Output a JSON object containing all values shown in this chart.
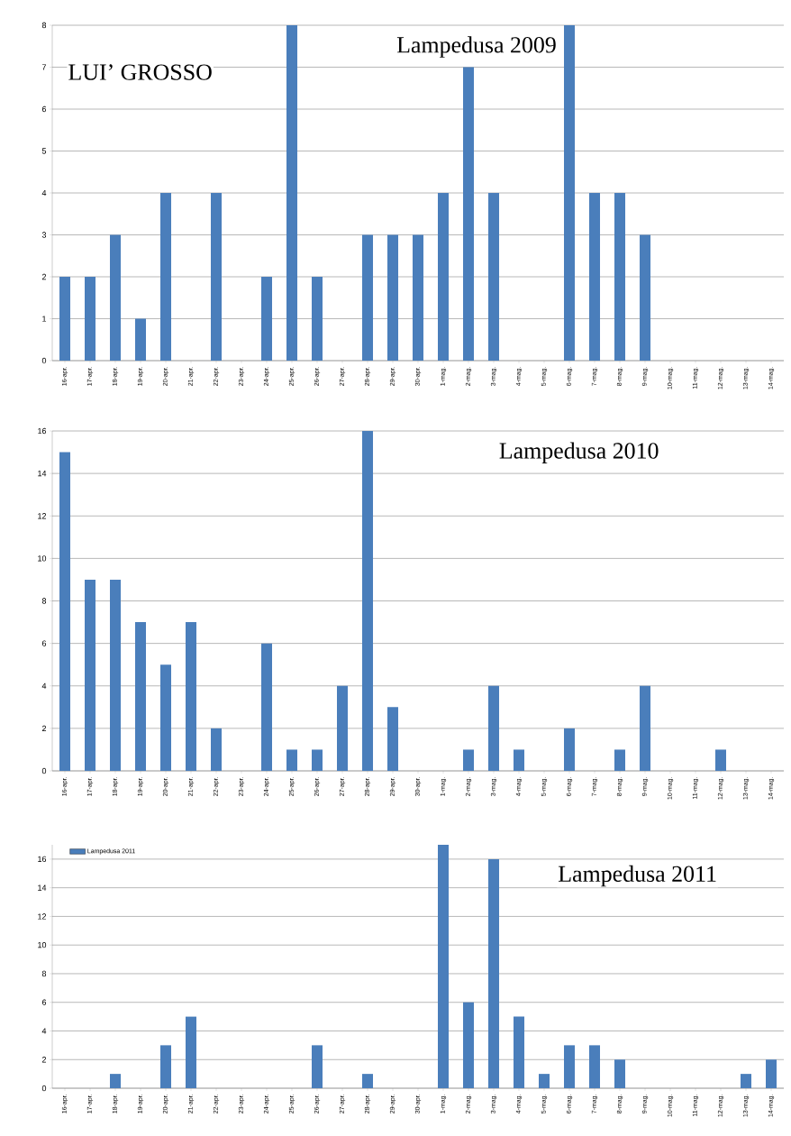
{
  "chart_data": [
    {
      "type": "bar",
      "title": "Lampedusa 2009",
      "annotations": [
        "LUI’ GROSSO"
      ],
      "categories": [
        "16-apr.",
        "17-apr.",
        "18-apr.",
        "19-apr.",
        "20-apr.",
        "21-apr.",
        "22-apr.",
        "23-apr.",
        "24-apr.",
        "25-apr.",
        "26-apr.",
        "27-apr.",
        "28-apr.",
        "29-apr.",
        "30-apr.",
        "1-mag.",
        "2-mag.",
        "3-mag.",
        "4-mag.",
        "5-mag.",
        "6-mag.",
        "7-mag.",
        "8-mag.",
        "9-mag.",
        "10-mag.",
        "11-mag.",
        "12-mag.",
        "13-mag.",
        "14-mag."
      ],
      "values": [
        2,
        2,
        3,
        1,
        4,
        0,
        4,
        0,
        2,
        8,
        2,
        0,
        3,
        3,
        3,
        4,
        7,
        4,
        0,
        0,
        8,
        4,
        4,
        3,
        0,
        0,
        0,
        0,
        0
      ],
      "color": "#4a7ebb",
      "ylim": [
        0,
        8
      ],
      "yticks": [
        0,
        1,
        2,
        3,
        4,
        5,
        6,
        7,
        8
      ],
      "grid": "y"
    },
    {
      "type": "bar",
      "title": "Lampedusa 2010",
      "categories": [
        "16-apr.",
        "17-apr.",
        "18-apr.",
        "19-apr.",
        "20-apr.",
        "21-apr.",
        "22-apr.",
        "23-apr.",
        "24-apr.",
        "25-apr.",
        "26-apr.",
        "27-apr.",
        "28-apr.",
        "29-apr.",
        "30-apr.",
        "1-mag.",
        "2-mag.",
        "3-mag.",
        "4-mag.",
        "5-mag.",
        "6-mag.",
        "7-mag.",
        "8-mag.",
        "9-mag.",
        "10-mag.",
        "11-mag.",
        "12-mag.",
        "13-mag.",
        "14-mag."
      ],
      "values": [
        15,
        9,
        9,
        7,
        5,
        7,
        2,
        0,
        6,
        1,
        1,
        4,
        16,
        3,
        0,
        0,
        1,
        4,
        1,
        0,
        2,
        0,
        1,
        4,
        0,
        0,
        1,
        0,
        0
      ],
      "color": "#4a7ebb",
      "ylim": [
        0,
        16
      ],
      "yticks": [
        0,
        2,
        4,
        6,
        8,
        10,
        12,
        14,
        16
      ],
      "grid": "y"
    },
    {
      "type": "bar",
      "title": "Lampedusa 2011",
      "categories": [
        "16-apr.",
        "17-apr.",
        "18-apr.",
        "19-apr.",
        "20-apr.",
        "21-apr.",
        "22-apr.",
        "23-apr.",
        "24-apr.",
        "25-apr.",
        "26-apr.",
        "27-apr.",
        "28-apr.",
        "29-apr.",
        "30-apr.",
        "1-mag.",
        "2-mag.",
        "3-mag.",
        "4-mag.",
        "5-mag.",
        "6-mag.",
        "7-mag.",
        "8-mag.",
        "9-mag.",
        "10-mag.",
        "11-mag.",
        "12-mag.",
        "13-mag.",
        "14-mag."
      ],
      "series": [
        {
          "name": "Lampedusa 2011",
          "color": "#4a7ebb",
          "values": [
            0,
            0,
            1,
            0,
            3,
            5,
            0,
            0,
            0,
            0,
            3,
            0,
            1,
            0,
            0,
            17,
            6,
            16,
            5,
            1,
            3,
            3,
            2,
            0,
            0,
            0,
            0,
            1,
            2
          ]
        }
      ],
      "ylim": [
        0,
        17
      ],
      "yticks": [
        0,
        2,
        4,
        6,
        8,
        10,
        12,
        14,
        16
      ],
      "grid": "y",
      "legend": "top left"
    }
  ]
}
